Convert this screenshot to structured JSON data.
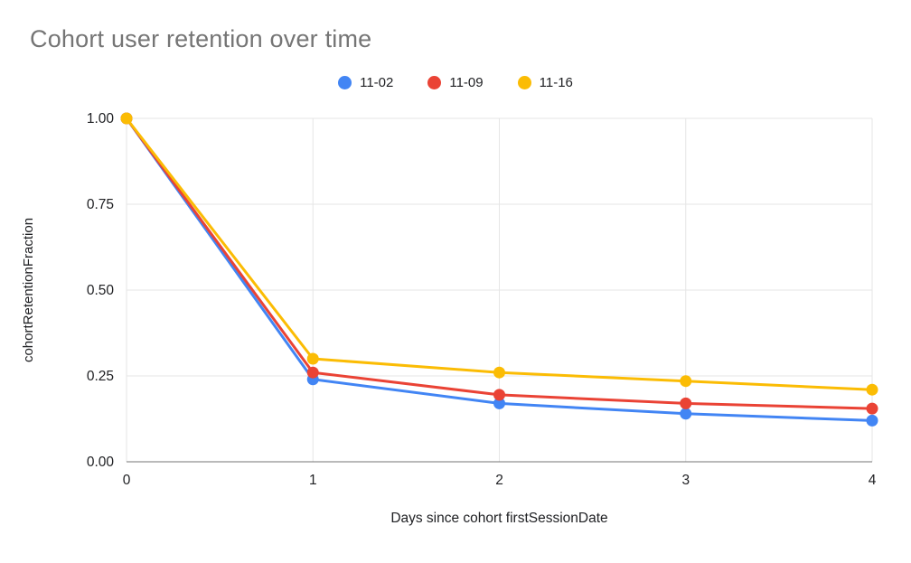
{
  "chart_data": {
    "type": "line",
    "title": "Cohort user retention over time",
    "xlabel": "Days since cohort firstSessionDate",
    "ylabel": "cohortRetentionFraction",
    "x": [
      0,
      1,
      2,
      3,
      4
    ],
    "xtick_labels": [
      "0",
      "1",
      "2",
      "3",
      "4"
    ],
    "ylim": [
      0,
      1
    ],
    "yticks": [
      0,
      0.25,
      0.5,
      0.75,
      1
    ],
    "ytick_labels": [
      "0.00",
      "0.25",
      "0.50",
      "0.75",
      "1.00"
    ],
    "grid": true,
    "legend_position": "top",
    "series": [
      {
        "name": "11-02",
        "color": "#4285F4",
        "values": [
          1.0,
          0.24,
          0.17,
          0.14,
          0.12
        ]
      },
      {
        "name": "11-09",
        "color": "#EA4335",
        "values": [
          1.0,
          0.26,
          0.195,
          0.17,
          0.155
        ]
      },
      {
        "name": "11-16",
        "color": "#FBBC04",
        "values": [
          1.0,
          0.3,
          0.26,
          0.235,
          0.21
        ]
      }
    ]
  },
  "colors": {
    "title_text": "#757575",
    "axis_text": "#202124",
    "gridline": "#e6e6e6",
    "baseline": "#757575",
    "background": "#ffffff"
  }
}
